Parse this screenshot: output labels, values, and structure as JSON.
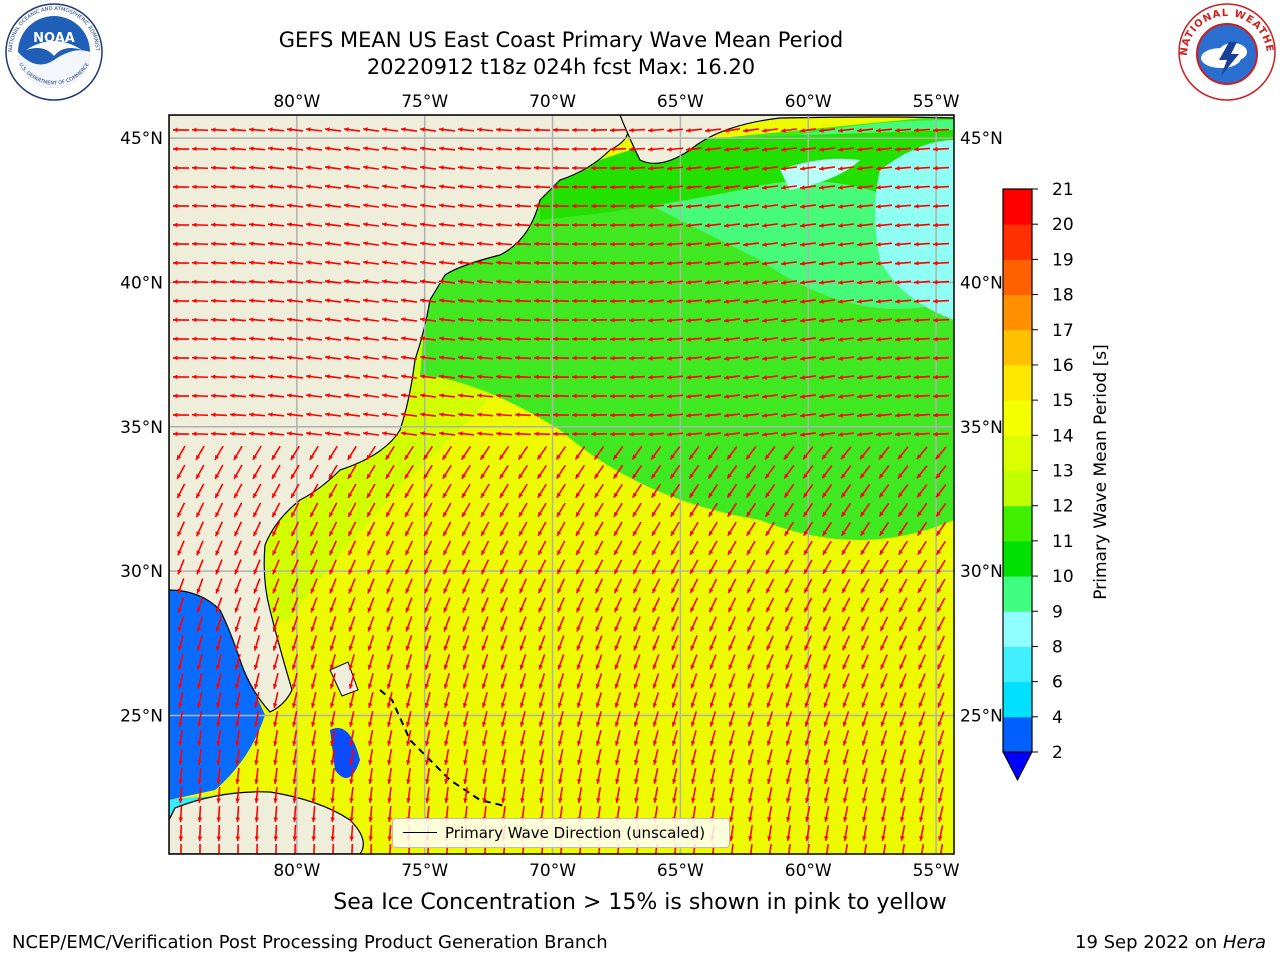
{
  "header": {
    "title_line1": "GEFS MEAN US East Coast Primary Wave Mean Period",
    "title_line2": "20220912 t18z 024h fcst   Max: 16.20"
  },
  "logos": {
    "noaa_text": "NOAA",
    "noaa_ring_text": "NATIONAL OCEANIC AND ATMOSPHERIC ADMINISTRATION",
    "noaa_ring_bottom": "U.S. DEPARTMENT OF COMMERCE",
    "nws_ring_text": "NATIONAL WEATHER SERVICE"
  },
  "map": {
    "lon_ticks": [
      "80°W",
      "75°W",
      "70°W",
      "65°W",
      "60°W",
      "55°W"
    ],
    "lat_ticks": [
      "45°N",
      "40°N",
      "35°N",
      "30°N",
      "25°N"
    ],
    "extent": {
      "lon_min": -85,
      "lon_max": -54.3,
      "lat_min": 20.2,
      "lat_max": 45.8
    },
    "land_color": "#efeedb",
    "grid_color": "#b0b0b0",
    "arrow_color": "#ff0000",
    "legend_label": "Primary Wave Direction (unscaled)"
  },
  "colorbar": {
    "label": "Primary Wave Mean Period [s]",
    "ticks": [
      "2",
      "4",
      "6",
      "8",
      "9",
      "10",
      "11",
      "12",
      "13",
      "14",
      "15",
      "16",
      "17",
      "18",
      "19",
      "20",
      "21"
    ],
    "colors": [
      "#0060ff",
      "#00e0ff",
      "#40f0ff",
      "#90ffff",
      "#40ff80",
      "#00e000",
      "#40f000",
      "#c0ff00",
      "#dcff00",
      "#f4ff00",
      "#ffe800",
      "#ffc000",
      "#ff9000",
      "#ff6000",
      "#ff3000",
      "#ff0000"
    ],
    "under_color": "#0000ff"
  },
  "footer": {
    "note": "Sea Ice Concentration > 15% is shown in pink to yellow",
    "left": "NCEP/EMC/Verification Post Processing Product Generation Branch",
    "right_prefix": "19 Sep 2022 on ",
    "right_machine": "Hera"
  }
}
